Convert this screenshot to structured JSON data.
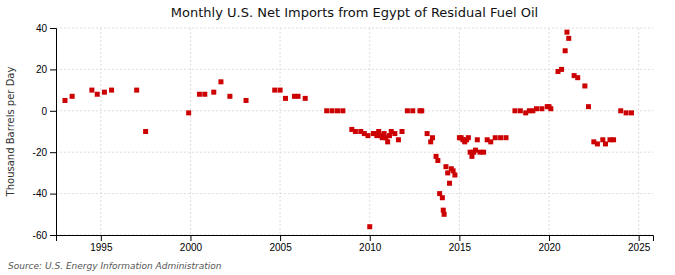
{
  "chart_data": {
    "type": "scatter",
    "title": "Monthly U.S. Net Imports from Egypt of Residual Fuel Oil",
    "ylabel": "Thousand Barrels per Day",
    "annotations": [
      "Source: U.S. Energy Information Administration"
    ],
    "color": "#cc0000",
    "marker": "square",
    "grid": true,
    "xlim": [
      1992.5,
      2025.8
    ],
    "xticks": [
      1995,
      2000,
      2005,
      2010,
      2015,
      2020,
      2025
    ],
    "ylim": [
      -60,
      40
    ],
    "yticks": [
      -60,
      -40,
      -20,
      0,
      20,
      40
    ],
    "x": [
      1993.0,
      1993.4,
      1994.5,
      1994.8,
      1995.2,
      1995.6,
      1997.0,
      1997.5,
      1999.9,
      2000.5,
      2000.8,
      2001.3,
      2001.7,
      2002.2,
      2003.1,
      2004.7,
      2005.0,
      2005.3,
      2005.8,
      2006.0,
      2006.4,
      2007.6,
      2007.9,
      2008.2,
      2008.5,
      2009.0,
      2009.2,
      2009.5,
      2009.7,
      2009.9,
      2010.0,
      2010.2,
      2010.3,
      2010.4,
      2010.5,
      2010.6,
      2010.7,
      2010.8,
      2010.9,
      2011.0,
      2011.1,
      2011.2,
      2011.4,
      2011.6,
      2011.8,
      2012.1,
      2012.4,
      2012.8,
      2012.9,
      2013.2,
      2013.4,
      2013.5,
      2013.7,
      2013.8,
      2013.9,
      2014.05,
      2014.1,
      2014.15,
      2014.25,
      2014.35,
      2014.45,
      2014.55,
      2014.65,
      2014.75,
      2015.0,
      2015.1,
      2015.2,
      2015.3,
      2015.4,
      2015.5,
      2015.6,
      2015.7,
      2015.8,
      2015.9,
      2016.0,
      2016.15,
      2016.35,
      2016.55,
      2016.75,
      2017.0,
      2017.3,
      2017.6,
      2018.1,
      2018.4,
      2018.7,
      2018.9,
      2019.1,
      2019.3,
      2019.6,
      2019.9,
      2020.0,
      2020.1,
      2020.5,
      2020.7,
      2020.9,
      2021.0,
      2021.1,
      2021.4,
      2021.6,
      2022.0,
      2022.2,
      2022.5,
      2022.7,
      2023.0,
      2023.15,
      2023.4,
      2023.6,
      2024.0,
      2024.3,
      2024.6
    ],
    "values": [
      5,
      7,
      10,
      8,
      9,
      10,
      10,
      -10,
      -1,
      8,
      8,
      9,
      14,
      7,
      5,
      10,
      10,
      6,
      7,
      7,
      6,
      0,
      0,
      0,
      0,
      -9,
      -10,
      -10,
      -11,
      -12,
      -56,
      -11,
      -11,
      -12,
      -10,
      -12,
      -13,
      -11,
      -13,
      -15,
      -12,
      -10,
      -11,
      -14,
      -10,
      0,
      0,
      0,
      0,
      -11,
      -15,
      -13,
      -22,
      -24,
      -40,
      -42,
      -48,
      -50,
      -27,
      -30,
      -35,
      -28,
      -29,
      -31,
      -13,
      -13,
      -14,
      -15,
      -14,
      -13,
      -20,
      -22,
      -20,
      -19,
      -14,
      -20,
      -20,
      -14,
      -15,
      -13,
      -13,
      -13,
      0,
      0,
      -1,
      0,
      0,
      1,
      1,
      2,
      2,
      1,
      19,
      20,
      29,
      38,
      35,
      17,
      16,
      12,
      2,
      -15,
      -16,
      -14,
      -16,
      -14,
      -14,
      0,
      -1,
      -1
    ]
  }
}
